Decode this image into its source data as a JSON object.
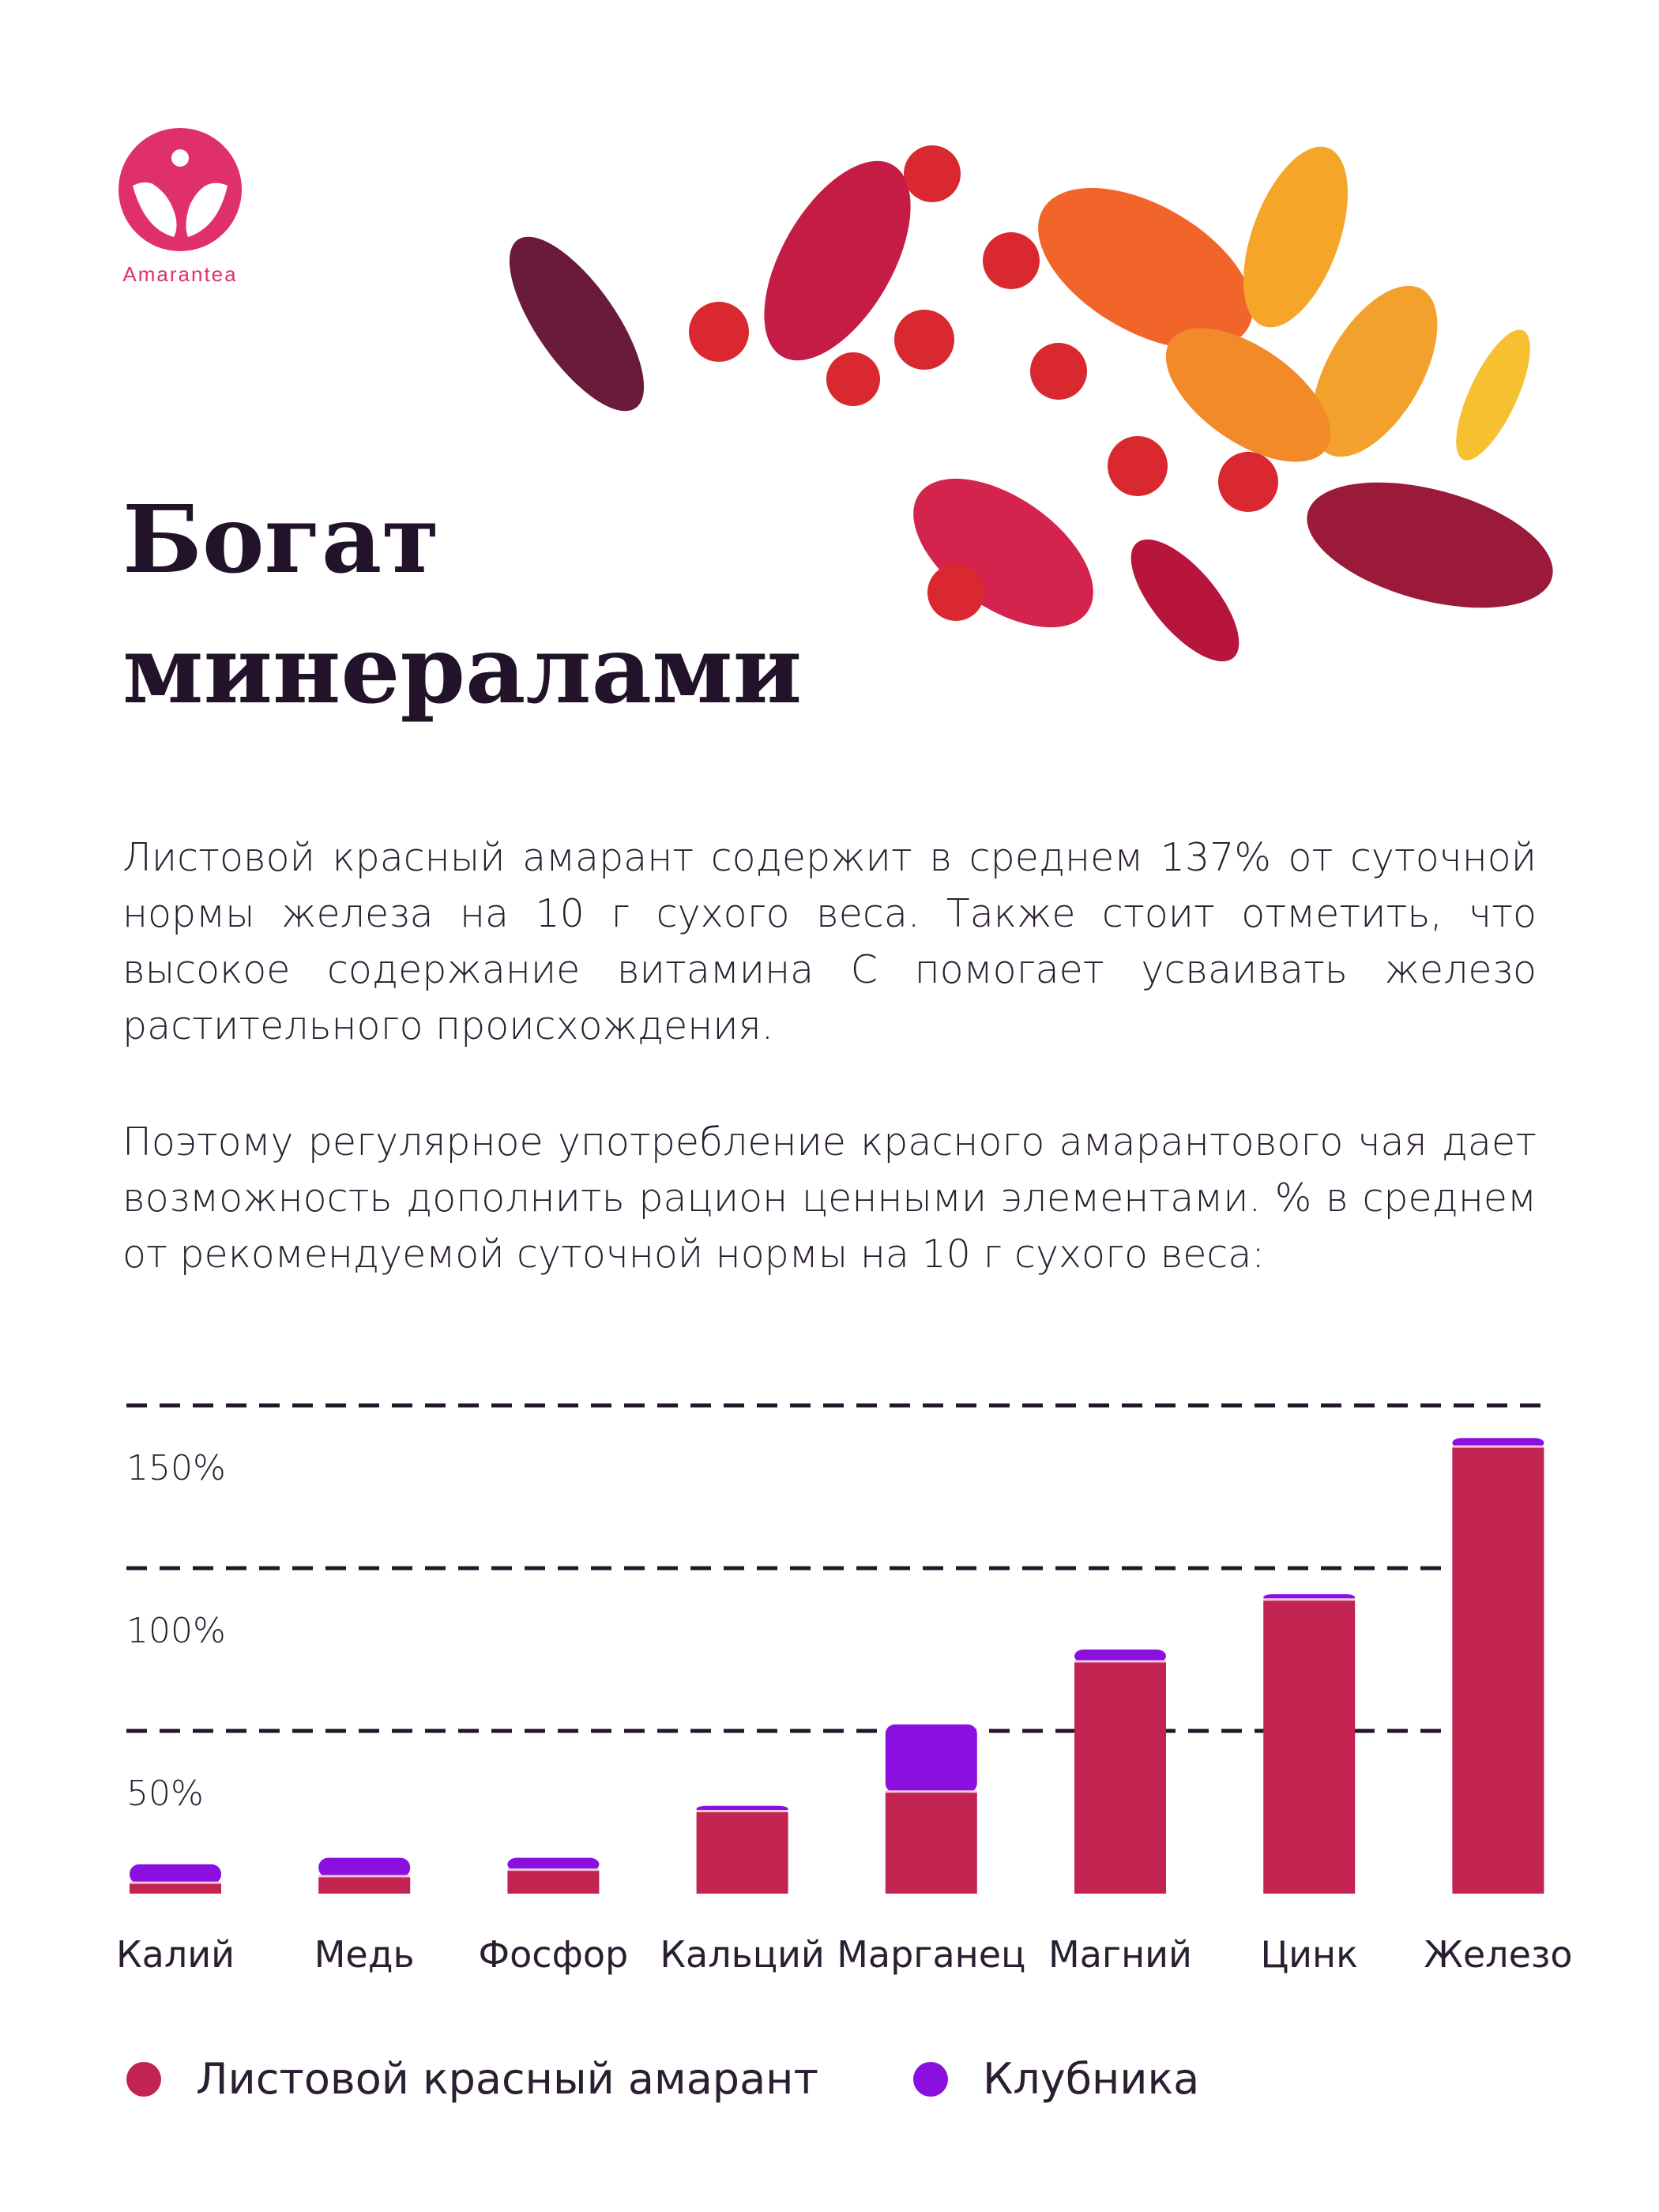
{
  "brand": {
    "name": "Amarantea",
    "color": "#e0306a"
  },
  "title": {
    "line1": "Богат",
    "line2": "минералами"
  },
  "paragraphs": [
    "Листовой красный амарант содержит в среднем 137% от суточной нормы железа на 10 г сухого веса. Также стоит отметить, что высокое содержание витамина С помогает усваивать железо растительного происхождения.",
    "Поэтому регулярное употребление красного амарантового чая дает возможность дополнить рацион ценными элементами. % в среднем от рекомендуемой суточной нормы на 10 г сухого веса:"
  ],
  "chart_data": {
    "type": "bar",
    "stacked": true,
    "categories": [
      "Калий",
      "Медь",
      "Фосфор",
      "Кальций",
      "Марганец",
      "Магний",
      "Цинк",
      "Железо"
    ],
    "series": [
      {
        "name": "Листовой красный амарант",
        "color": "#c22350",
        "values": [
          3,
          5,
          7,
          25,
          31,
          71,
          90,
          137
        ]
      },
      {
        "name": "Клубника",
        "color": "#8b10e0",
        "values": [
          6,
          6,
          4,
          2,
          21,
          4,
          2,
          3
        ]
      }
    ],
    "yticks": [
      {
        "value": 50,
        "label": "50%"
      },
      {
        "value": 100,
        "label": "100%"
      },
      {
        "value": 150,
        "label": "150%"
      }
    ],
    "ylim": [
      0,
      150
    ],
    "grid": true,
    "legend": "bottom"
  }
}
